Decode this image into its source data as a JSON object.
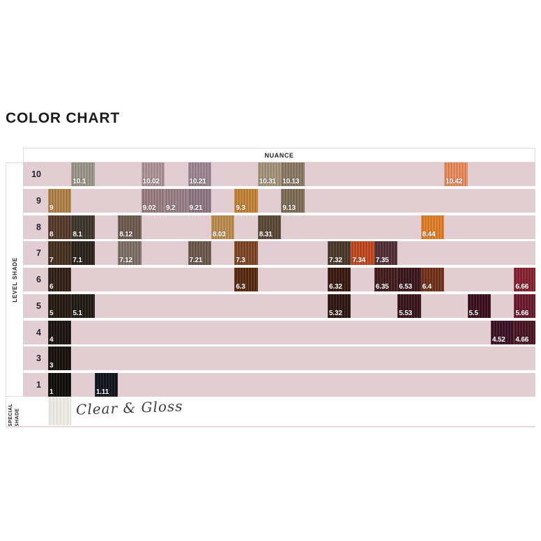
{
  "page": {
    "title": "COLOR CHART"
  },
  "table": {
    "header": "NUANCE",
    "sidebar": {
      "level_label": "LEVEL SHADE",
      "special_label": "SPECIAL SHADE"
    },
    "rows": [
      {
        "level": "10",
        "swatches": [
          {
            "code": "10.1",
            "col": 1,
            "color": "#9a9589"
          },
          {
            "code": "10.02",
            "col": 4,
            "color": "#ab9496"
          },
          {
            "code": "10.21",
            "col": 6,
            "color": "#9b8791"
          },
          {
            "code": "10.31",
            "col": 9,
            "color": "#a4937b"
          },
          {
            "code": "10.13",
            "col": 10,
            "color": "#877963"
          },
          {
            "code": "10.42",
            "col": 17,
            "color": "#e88a5d"
          }
        ]
      },
      {
        "level": "9",
        "swatches": [
          {
            "code": "9",
            "col": 0,
            "color": "#b08049"
          },
          {
            "code": "9.02",
            "col": 4,
            "color": "#987c80"
          },
          {
            "code": "9.2",
            "col": 5,
            "color": "#987e85"
          },
          {
            "code": "9.21",
            "col": 6,
            "color": "#8e7680"
          },
          {
            "code": "9.3",
            "col": 8,
            "color": "#c28136"
          },
          {
            "code": "9.13",
            "col": 10,
            "color": "#7d6c56"
          }
        ]
      },
      {
        "level": "8",
        "swatches": [
          {
            "code": "8",
            "col": 0,
            "color": "#553a29"
          },
          {
            "code": "8.1",
            "col": 1,
            "color": "#3d342c"
          },
          {
            "code": "8.12",
            "col": 3,
            "color": "#6c5b4e"
          },
          {
            "code": "8.03",
            "col": 7,
            "color": "#bb8c4e"
          },
          {
            "code": "8.31",
            "col": 9,
            "color": "#5a4836"
          },
          {
            "code": "8.44",
            "col": 16,
            "color": "#de7d28"
          }
        ]
      },
      {
        "level": "7",
        "swatches": [
          {
            "code": "7",
            "col": 0,
            "color": "#45301f"
          },
          {
            "code": "7.1",
            "col": 1,
            "color": "#2a221a"
          },
          {
            "code": "7.12",
            "col": 3,
            "color": "#7e6f66"
          },
          {
            "code": "7.21",
            "col": 6,
            "color": "#6b584b"
          },
          {
            "code": "7.3",
            "col": 8,
            "color": "#7d4524"
          },
          {
            "code": "7.32",
            "col": 12,
            "color": "#4c382a"
          },
          {
            "code": "7.34",
            "col": 13,
            "color": "#c0461d"
          },
          {
            "code": "7.35",
            "col": 14,
            "color": "#513037"
          }
        ]
      },
      {
        "level": "6",
        "swatches": [
          {
            "code": "6",
            "col": 0,
            "color": "#322116"
          },
          {
            "code": "6.3",
            "col": 8,
            "color": "#572a11"
          },
          {
            "code": "6.32",
            "col": 12,
            "color": "#3a1a10"
          },
          {
            "code": "6.35",
            "col": 14,
            "color": "#431c1e"
          },
          {
            "code": "6.53",
            "col": 15,
            "color": "#3a161a"
          },
          {
            "code": "6.4",
            "col": 16,
            "color": "#70311b"
          },
          {
            "code": "6.66",
            "col": 20,
            "color": "#86222f"
          }
        ]
      },
      {
        "level": "5",
        "swatches": [
          {
            "code": "5",
            "col": 0,
            "color": "#251a12"
          },
          {
            "code": "5.1",
            "col": 1,
            "color": "#211b15"
          },
          {
            "code": "5.32",
            "col": 12,
            "color": "#2f1610"
          },
          {
            "code": "5.53",
            "col": 15,
            "color": "#371419"
          },
          {
            "code": "5.5",
            "col": 18,
            "color": "#3a101e"
          },
          {
            "code": "5.66",
            "col": 20,
            "color": "#691a2c"
          }
        ]
      },
      {
        "level": "4",
        "swatches": [
          {
            "code": "4",
            "col": 0,
            "color": "#1a1410"
          },
          {
            "code": "4.52",
            "col": 19,
            "color": "#3b1126"
          },
          {
            "code": "4.66",
            "col": 20,
            "color": "#4b1523"
          }
        ]
      },
      {
        "level": "3",
        "swatches": [
          {
            "code": "3",
            "col": 0,
            "color": "#16110d"
          }
        ]
      },
      {
        "level": "1",
        "swatches": [
          {
            "code": "1",
            "col": 0,
            "color": "#0f0c0a"
          },
          {
            "code": "1.11",
            "col": 2,
            "color": "#10141d"
          }
        ]
      }
    ],
    "special_row": {
      "swatch_color": "#eae8e2",
      "note": "Clear & Gloss"
    }
  },
  "colors": {
    "row_background": "#e2cdd2",
    "border_pink": "#ecd7db",
    "text_dark": "#23222e",
    "label_white": "#ffffff"
  },
  "chart_data": {
    "type": "table",
    "title": "COLOR CHART",
    "column_group_header": "NUANCE",
    "row_group_label": "LEVEL SHADE",
    "special_group_label": "SPECIAL SHADE",
    "levels": [
      {
        "level": "10",
        "shades": [
          "10.1",
          "10.02",
          "10.21",
          "10.31",
          "10.13",
          "10.42"
        ]
      },
      {
        "level": "9",
        "shades": [
          "9",
          "9.02",
          "9.2",
          "9.21",
          "9.3",
          "9.13"
        ]
      },
      {
        "level": "8",
        "shades": [
          "8",
          "8.1",
          "8.12",
          "8.03",
          "8.31",
          "8.44"
        ]
      },
      {
        "level": "7",
        "shades": [
          "7",
          "7.1",
          "7.12",
          "7.21",
          "7.3",
          "7.32",
          "7.34",
          "7.35"
        ]
      },
      {
        "level": "6",
        "shades": [
          "6",
          "6.3",
          "6.32",
          "6.35",
          "6.53",
          "6.4",
          "6.66"
        ]
      },
      {
        "level": "5",
        "shades": [
          "5",
          "5.1",
          "5.32",
          "5.53",
          "5.5",
          "5.66"
        ]
      },
      {
        "level": "4",
        "shades": [
          "4",
          "4.52",
          "4.66"
        ]
      },
      {
        "level": "3",
        "shades": [
          "3"
        ]
      },
      {
        "level": "1",
        "shades": [
          "1",
          "1.11"
        ]
      },
      {
        "level": "SPECIAL",
        "shades": [
          "Clear & Gloss"
        ]
      }
    ]
  }
}
